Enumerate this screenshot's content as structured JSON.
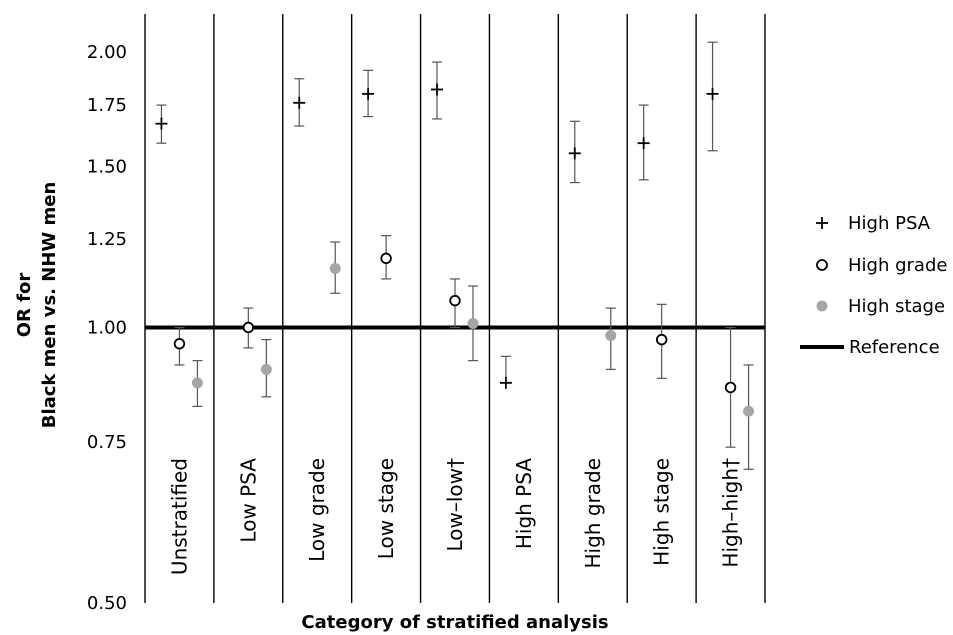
{
  "chart_data": {
    "type": "scatter",
    "title": "",
    "xlabel": "Category of stratified analysis",
    "ylabel_lines": [
      "OR for",
      "Black men vs. NHW men"
    ],
    "y_scale": "log",
    "ylim": [
      0.5,
      2.2
    ],
    "y_ticks": [
      {
        "value": 0.5,
        "label": "0.50"
      },
      {
        "value": 0.75,
        "label": "0.75"
      },
      {
        "value": 1.0,
        "label": "1.00"
      },
      {
        "value": 1.25,
        "label": "1.25"
      },
      {
        "value": 1.5,
        "label": "1.50"
      },
      {
        "value": 1.75,
        "label": "1.75"
      },
      {
        "value": 2.0,
        "label": "2.00"
      }
    ],
    "reference": {
      "name": "Reference",
      "value": 1.0
    },
    "categories": [
      "Unstratified",
      "Low PSA",
      "Low grade",
      "Low stage",
      "Low–low†",
      "High PSA",
      "High grade",
      "High stage",
      "High–high†"
    ],
    "series": [
      {
        "name": "High PSA",
        "marker": "plus",
        "color": "#000000",
        "points": [
          {
            "category": "Unstratified",
            "value": 1.67,
            "ci": [
              1.59,
              1.75
            ]
          },
          {
            "category": "Low grade",
            "value": 1.76,
            "ci": [
              1.66,
              1.87
            ]
          },
          {
            "category": "Low stage",
            "value": 1.8,
            "ci": [
              1.7,
              1.91
            ]
          },
          {
            "category": "Low–low†",
            "value": 1.82,
            "ci": [
              1.69,
              1.95
            ]
          },
          {
            "category": "High PSA",
            "value": 0.87,
            "ci": [
              0.87,
              0.93
            ]
          },
          {
            "category": "High grade",
            "value": 1.55,
            "ci": [
              1.44,
              1.68
            ]
          },
          {
            "category": "High stage",
            "value": 1.59,
            "ci": [
              1.45,
              1.75
            ]
          },
          {
            "category": "High–high†",
            "value": 1.8,
            "ci": [
              1.56,
              2.05
            ]
          }
        ]
      },
      {
        "name": "High grade",
        "marker": "open-circle",
        "color": "#000000",
        "points": [
          {
            "category": "Unstratified",
            "value": 0.96,
            "ci": [
              0.91,
              1.0
            ]
          },
          {
            "category": "Low PSA",
            "value": 1.0,
            "ci": [
              0.95,
              1.05
            ]
          },
          {
            "category": "Low stage",
            "value": 1.19,
            "ci": [
              1.13,
              1.26
            ]
          },
          {
            "category": "Low–low†",
            "value": 1.07,
            "ci": [
              1.0,
              1.13
            ]
          },
          {
            "category": "High stage",
            "value": 0.97,
            "ci": [
              0.88,
              1.06
            ]
          },
          {
            "category": "High–high†",
            "value": 0.86,
            "ci": [
              0.74,
              1.0
            ]
          }
        ]
      },
      {
        "name": "High stage",
        "marker": "filled-circle",
        "color": "#a6a6a6",
        "points": [
          {
            "category": "Unstratified",
            "value": 0.87,
            "ci": [
              0.82,
              0.92
            ]
          },
          {
            "category": "Low PSA",
            "value": 0.9,
            "ci": [
              0.84,
              0.97
            ]
          },
          {
            "category": "Low grade",
            "value": 1.16,
            "ci": [
              1.09,
              1.24
            ]
          },
          {
            "category": "Low–low†",
            "value": 1.01,
            "ci": [
              0.92,
              1.11
            ]
          },
          {
            "category": "High grade",
            "value": 0.98,
            "ci": [
              0.9,
              1.05
            ]
          },
          {
            "category": "High–high†",
            "value": 0.81,
            "ci": [
              0.7,
              0.91
            ]
          }
        ]
      }
    ],
    "legend_position": "right",
    "grid": false
  }
}
